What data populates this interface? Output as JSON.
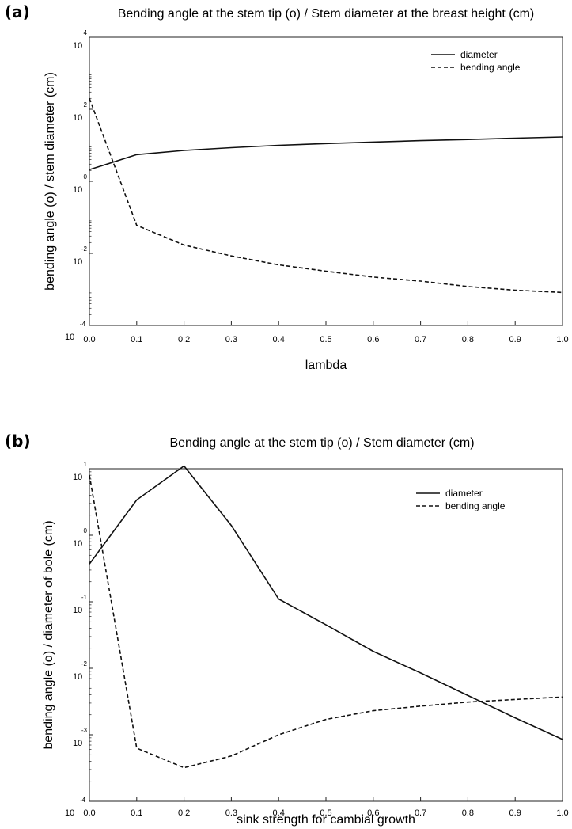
{
  "chart_data": [
    {
      "panel_label": "(a)",
      "type": "line",
      "title": "Bending angle at the stem tip (o) / Stem diameter at the breast height (cm)",
      "xlabel": "lambda",
      "ylabel": "bending angle (o) / stem diameter (cm)",
      "xlim": [
        0.0,
        1.0
      ],
      "ylim_log10": [
        -4,
        4
      ],
      "y_scale": "log",
      "x_ticks": [
        "0.0",
        "0.1",
        "0.2",
        "0.3",
        "0.4",
        "0.5",
        "0.6",
        "0.7",
        "0.8",
        "0.9",
        "1.0"
      ],
      "y_ticks": [
        {
          "base": "10",
          "exp": "4"
        },
        {
          "base": "10",
          "exp": "2"
        },
        {
          "base": "10",
          "exp": "0"
        },
        {
          "base": "10",
          "exp": "-2"
        },
        {
          "base": "10",
          "exp": "-4"
        }
      ],
      "legend_position": "top-right",
      "grid": false,
      "x": [
        0.0,
        0.1,
        0.2,
        0.3,
        0.4,
        0.5,
        0.6,
        0.7,
        0.8,
        0.9,
        1.0
      ],
      "series": [
        {
          "name": "diameter",
          "style": "solid",
          "values": [
            2.1,
            5.5,
            7.2,
            8.6,
            10.0,
            11.2,
            12.3,
            13.5,
            14.5,
            15.8,
            17.0
          ]
        },
        {
          "name": "bending angle",
          "style": "dashed",
          "values": [
            200,
            0.06,
            0.017,
            0.0085,
            0.0048,
            0.0032,
            0.0022,
            0.0017,
            0.0012,
            0.00095,
            0.00082
          ]
        }
      ]
    },
    {
      "panel_label": "(b)",
      "type": "line",
      "title": "Bending angle at the stem tip (o) / Stem diameter (cm)",
      "xlabel": "sink strength for cambial growth",
      "ylabel": "bending angle (o) / diameter of bole (cm)",
      "xlim": [
        0.0,
        1.0
      ],
      "ylim_log10": [
        -4,
        1
      ],
      "y_scale": "log",
      "x_ticks": [
        "0.0",
        "0.1",
        "0.2",
        "0.3",
        "0.4",
        "0.5",
        "0.6",
        "0.7",
        "0.8",
        "0.9",
        "1.0"
      ],
      "y_ticks": [
        {
          "base": "10",
          "exp": "1"
        },
        {
          "base": "10",
          "exp": "0"
        },
        {
          "base": "10",
          "exp": "-1"
        },
        {
          "base": "10",
          "exp": "-2"
        },
        {
          "base": "10",
          "exp": "-3"
        },
        {
          "base": "10",
          "exp": "-4"
        }
      ],
      "legend_position": "top-right",
      "grid": false,
      "x": [
        0.0,
        0.1,
        0.2,
        0.3,
        0.4,
        0.5,
        0.6,
        0.7,
        0.8,
        0.9,
        1.0
      ],
      "series": [
        {
          "name": "diameter",
          "style": "solid",
          "values": [
            0.37,
            3.4,
            11.0,
            1.4,
            0.11,
            0.045,
            0.018,
            0.0085,
            0.0039,
            0.0018,
            0.00085
          ]
        },
        {
          "name": "bending angle",
          "style": "dashed",
          "values": [
            8.0,
            0.00063,
            0.00032,
            0.00048,
            0.001,
            0.0017,
            0.0023,
            0.0027,
            0.0031,
            0.0034,
            0.0037
          ]
        }
      ]
    }
  ]
}
